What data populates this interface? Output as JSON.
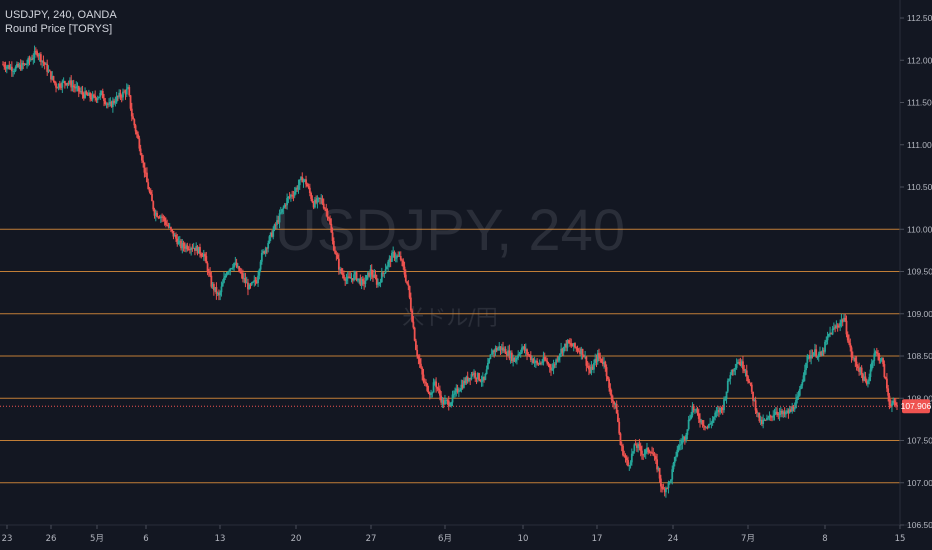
{
  "header": {
    "symbol_line": "USDJPY, 240, OANDA",
    "indicator_line": "Round Price [TORYS]"
  },
  "watermark": {
    "main": "USDJPY, 240",
    "sub": "米ドル/円"
  },
  "last_price": {
    "label": "107.906",
    "value": 107.906,
    "color": "#ef5350"
  },
  "colors": {
    "background": "#131722",
    "up": "#26a69a",
    "down": "#ef5350",
    "round_line": "#e0913b",
    "axis_text": "#b2b5be"
  },
  "chart_data": {
    "type": "candlestick",
    "title": "USDJPY, 240, OANDA",
    "ylim": [
      106.5,
      112.5
    ],
    "y_ticks": [
      112.5,
      112.0,
      111.5,
      111.0,
      110.5,
      110.0,
      109.5,
      109.0,
      108.5,
      108.0,
      107.5,
      107.0,
      106.5
    ],
    "y_tick_labels": [
      "112.500",
      "112.000",
      "111.500",
      "111.000",
      "110.500",
      "110.000",
      "109.500",
      "109.000",
      "108.500",
      "108.000",
      "107.500",
      "107.000",
      "106.500"
    ],
    "x_tick_labels": [
      "23",
      "26",
      "5月",
      "6",
      "13",
      "20",
      "27",
      "6月",
      "10",
      "17",
      "24",
      "7月",
      "8",
      "15"
    ],
    "round_levels": [
      110.0,
      109.5,
      109.0,
      108.5,
      108.0,
      107.5,
      107.0
    ],
    "close_path": [
      [
        0,
        111.95
      ],
      [
        3,
        111.9
      ],
      [
        6,
        111.95
      ],
      [
        9,
        112.1
      ],
      [
        11,
        111.95
      ],
      [
        14,
        111.7
      ],
      [
        17,
        111.75
      ],
      [
        21,
        111.6
      ],
      [
        24,
        111.55
      ],
      [
        26,
        111.6
      ],
      [
        28,
        111.45
      ],
      [
        30,
        111.55
      ],
      [
        33,
        111.65
      ],
      [
        34,
        111.35
      ],
      [
        36,
        111.0
      ],
      [
        38,
        110.55
      ],
      [
        40,
        110.2
      ],
      [
        42,
        110.15
      ],
      [
        44,
        110.0
      ],
      [
        47,
        109.8
      ],
      [
        50,
        109.8
      ],
      [
        53,
        109.7
      ],
      [
        55,
        109.35
      ],
      [
        57,
        109.2
      ],
      [
        59,
        109.5
      ],
      [
        61,
        109.6
      ],
      [
        63,
        109.45
      ],
      [
        65,
        109.3
      ],
      [
        67,
        109.4
      ],
      [
        68,
        109.65
      ],
      [
        70,
        109.85
      ],
      [
        72,
        110.05
      ],
      [
        75,
        110.35
      ],
      [
        77,
        110.45
      ],
      [
        79,
        110.6
      ],
      [
        80,
        110.55
      ],
      [
        82,
        110.3
      ],
      [
        84,
        110.35
      ],
      [
        86,
        110.15
      ],
      [
        87,
        109.85
      ],
      [
        89,
        109.5
      ],
      [
        91,
        109.4
      ],
      [
        93,
        109.45
      ],
      [
        95,
        109.35
      ],
      [
        97,
        109.5
      ],
      [
        99,
        109.35
      ],
      [
        101,
        109.55
      ],
      [
        103,
        109.7
      ],
      [
        105,
        109.65
      ],
      [
        107,
        109.3
      ],
      [
        109,
        108.6
      ],
      [
        111,
        108.2
      ],
      [
        113,
        108.05
      ],
      [
        114,
        108.2
      ],
      [
        116,
        107.95
      ],
      [
        118,
        107.95
      ],
      [
        120,
        108.1
      ],
      [
        122,
        108.2
      ],
      [
        124,
        108.3
      ],
      [
        127,
        108.2
      ],
      [
        129,
        108.55
      ],
      [
        131,
        108.6
      ],
      [
        133,
        108.55
      ],
      [
        135,
        108.45
      ],
      [
        137,
        108.6
      ],
      [
        139,
        108.5
      ],
      [
        141,
        108.4
      ],
      [
        143,
        108.45
      ],
      [
        145,
        108.35
      ],
      [
        147,
        108.55
      ],
      [
        149,
        108.65
      ],
      [
        151,
        108.6
      ],
      [
        153,
        108.55
      ],
      [
        155,
        108.3
      ],
      [
        157,
        108.5
      ],
      [
        159,
        108.4
      ],
      [
        160,
        108.1
      ],
      [
        162,
        107.85
      ],
      [
        163,
        107.45
      ],
      [
        165,
        107.2
      ],
      [
        167,
        107.45
      ],
      [
        169,
        107.35
      ],
      [
        171,
        107.4
      ],
      [
        173,
        107.15
      ],
      [
        174,
        106.9
      ],
      [
        176,
        107.0
      ],
      [
        178,
        107.4
      ],
      [
        180,
        107.55
      ],
      [
        182,
        107.9
      ],
      [
        184,
        107.75
      ],
      [
        186,
        107.65
      ],
      [
        188,
        107.8
      ],
      [
        190,
        107.9
      ],
      [
        192,
        108.3
      ],
      [
        194,
        108.45
      ],
      [
        196,
        108.35
      ],
      [
        198,
        108.0
      ],
      [
        200,
        107.7
      ],
      [
        202,
        107.75
      ],
      [
        204,
        107.85
      ],
      [
        206,
        107.8
      ],
      [
        208,
        107.85
      ],
      [
        210,
        108.0
      ],
      [
        212,
        108.45
      ],
      [
        214,
        108.55
      ],
      [
        216,
        108.5
      ],
      [
        218,
        108.75
      ],
      [
        220,
        108.85
      ],
      [
        222,
        108.95
      ],
      [
        224,
        108.5
      ],
      [
        226,
        108.35
      ],
      [
        228,
        108.15
      ],
      [
        230,
        108.55
      ],
      [
        232,
        108.45
      ],
      [
        234,
        107.95
      ],
      [
        236,
        107.906
      ]
    ]
  }
}
